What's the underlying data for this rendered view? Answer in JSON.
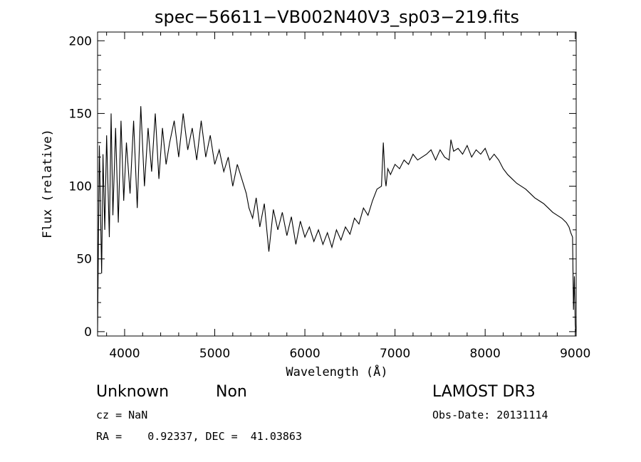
{
  "chart_data": {
    "type": "line",
    "title": "spec−56611−VB002N40V3_sp03−219.fits",
    "xlabel": "Wavelength (Å)",
    "ylabel": "Flux (relative)",
    "xlim": [
      3700,
      9010
    ],
    "ylim": [
      -3,
      206
    ],
    "x_ticks": [
      4000,
      5000,
      6000,
      7000,
      8000,
      9000
    ],
    "y_ticks": [
      0,
      50,
      100,
      150,
      200
    ],
    "x_tick_labels": [
      "4000",
      "5000",
      "6000",
      "7000",
      "8000",
      "9000"
    ],
    "y_tick_labels": [
      "0",
      "50",
      "100",
      "150",
      "200"
    ],
    "grid": false,
    "legend": "none",
    "line_color": "#000000",
    "series": [
      {
        "x": [
          3700,
          3720,
          3745,
          3760,
          3780,
          3800,
          3830,
          3850,
          3870,
          3900,
          3930,
          3960,
          3990,
          4020,
          4060,
          4100,
          4140,
          4180,
          4220,
          4260,
          4300,
          4340,
          4380,
          4420,
          4460,
          4500,
          4550,
          4600,
          4650,
          4700,
          4750,
          4800,
          4850,
          4900,
          4950,
          5000,
          5050,
          5100,
          5150,
          5200,
          5250,
          5300,
          5350,
          5380,
          5420,
          5460,
          5500,
          5550,
          5600,
          5650,
          5700,
          5750,
          5800,
          5850,
          5900,
          5950,
          6000,
          6050,
          6100,
          6150,
          6200,
          6250,
          6300,
          6350,
          6400,
          6450,
          6500,
          6550,
          6600,
          6650,
          6700,
          6750,
          6800,
          6850,
          6870,
          6890,
          6900,
          6920,
          6950,
          7000,
          7050,
          7100,
          7150,
          7200,
          7250,
          7300,
          7350,
          7400,
          7450,
          7500,
          7550,
          7600,
          7620,
          7650,
          7700,
          7750,
          7800,
          7850,
          7900,
          7950,
          8000,
          8050,
          8100,
          8150,
          8200,
          8250,
          8300,
          8350,
          8400,
          8450,
          8500,
          8550,
          8600,
          8650,
          8700,
          8750,
          8800,
          8850,
          8900,
          8930,
          8950,
          8970,
          8980,
          8990,
          9000,
          9005
        ],
        "y": [
          0,
          128,
          40,
          122,
          70,
          135,
          65,
          150,
          80,
          140,
          75,
          145,
          90,
          130,
          95,
          145,
          85,
          155,
          100,
          140,
          110,
          150,
          105,
          140,
          115,
          130,
          145,
          120,
          150,
          125,
          140,
          118,
          145,
          120,
          135,
          115,
          125,
          110,
          120,
          100,
          115,
          105,
          95,
          85,
          78,
          92,
          72,
          88,
          55,
          84,
          70,
          82,
          66,
          79,
          60,
          76,
          65,
          72,
          62,
          70,
          60,
          68,
          58,
          70,
          63,
          72,
          67,
          78,
          74,
          85,
          80,
          90,
          98,
          100,
          130,
          105,
          100,
          112,
          108,
          115,
          112,
          118,
          115,
          122,
          118,
          120,
          122,
          125,
          118,
          125,
          120,
          118,
          132,
          124,
          126,
          122,
          128,
          120,
          125,
          122,
          126,
          118,
          122,
          118,
          112,
          108,
          105,
          102,
          100,
          98,
          95,
          92,
          90,
          88,
          85,
          82,
          80,
          78,
          75,
          72,
          68,
          65,
          15,
          38,
          5,
          0
        ]
      }
    ]
  },
  "info": {
    "object_class": "Unknown",
    "object_subclass": "Non",
    "redshift": "cz = NaN",
    "coords": "RA =    0.92337, DEC =  41.03863",
    "survey": "LAMOST DR3",
    "obs_date": "Obs-Date: 20131114"
  }
}
